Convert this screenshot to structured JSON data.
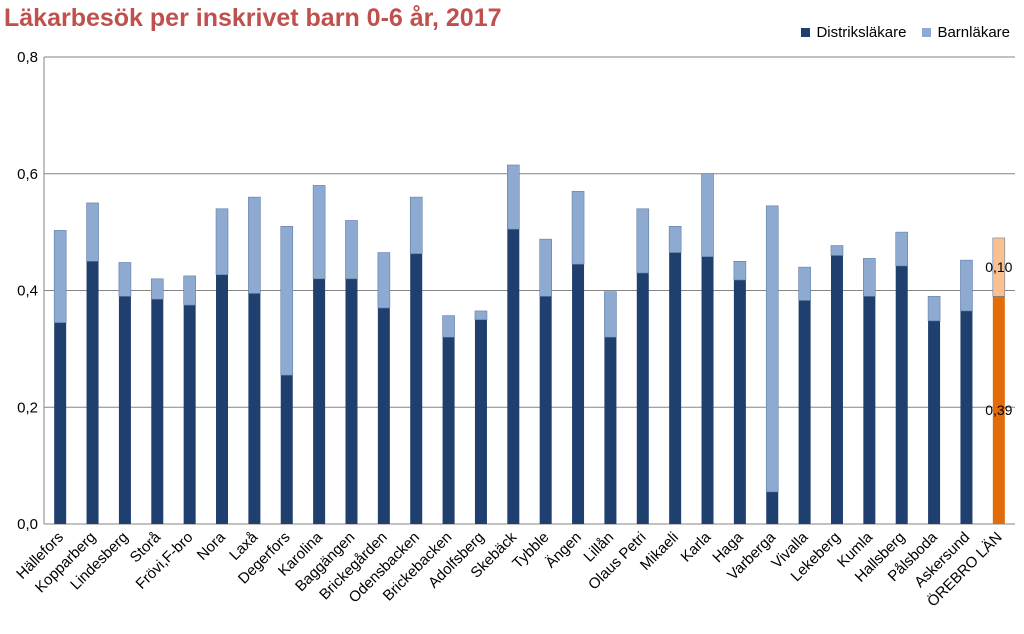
{
  "chart_data": {
    "type": "bar",
    "stacked": true,
    "title": "Läkarbesök per inskrivet barn 0-6 år, 2017",
    "ylim": [
      0,
      0.8
    ],
    "yticks": [
      "0,0",
      "0,2",
      "0,4",
      "0,6",
      "0,8"
    ],
    "ytick_values": [
      0,
      0.2,
      0.4,
      0.6,
      0.8
    ],
    "grid": "horizontal",
    "legend_position": "top-right",
    "categories": [
      "Hällefors",
      "Kopparberg",
      "Lindesberg",
      "Storå",
      "Frövi,F-bro",
      "Nora",
      "Laxå",
      "Degerfors",
      "Karolina",
      "Baggängen",
      "Brickegården",
      "Odensbacken",
      "Brickebacken",
      "Adolfsberg",
      "Skebäck",
      "Tybble",
      "Ängen",
      "Lillån",
      "Olaus Petri",
      "Mikaeli",
      "Karla",
      "Haga",
      "Varberga",
      "Vivalla",
      "Lekeberg",
      "Kumla",
      "Hallsberg",
      "Pålsboda",
      "Askersund",
      "ÖREBRO LÄN"
    ],
    "series": [
      {
        "name": "Distriksläkare",
        "color": "#1f3f6e",
        "values": [
          0.345,
          0.45,
          0.39,
          0.385,
          0.375,
          0.427,
          0.395,
          0.255,
          0.42,
          0.42,
          0.37,
          0.463,
          0.32,
          0.35,
          0.505,
          0.39,
          0.445,
          0.32,
          0.43,
          0.465,
          0.458,
          0.418,
          0.055,
          0.383,
          0.46,
          0.39,
          0.442,
          0.348,
          0.365,
          0.39
        ]
      },
      {
        "name": "Barnläkare",
        "color": "#8eaad0",
        "values": [
          0.158,
          0.1,
          0.058,
          0.035,
          0.05,
          0.113,
          0.165,
          0.255,
          0.16,
          0.1,
          0.095,
          0.097,
          0.037,
          0.015,
          0.11,
          0.098,
          0.125,
          0.078,
          0.11,
          0.045,
          0.142,
          0.032,
          0.49,
          0.057,
          0.017,
          0.065,
          0.058,
          0.042,
          0.087,
          0.1
        ]
      }
    ],
    "highlight": {
      "category": "ÖREBRO LÄN",
      "colors": [
        "#e36c0a",
        "#fac090"
      ]
    },
    "data_labels": {
      "category": "ÖREBRO LÄN",
      "labels": [
        "0,39",
        "0,10"
      ]
    }
  }
}
